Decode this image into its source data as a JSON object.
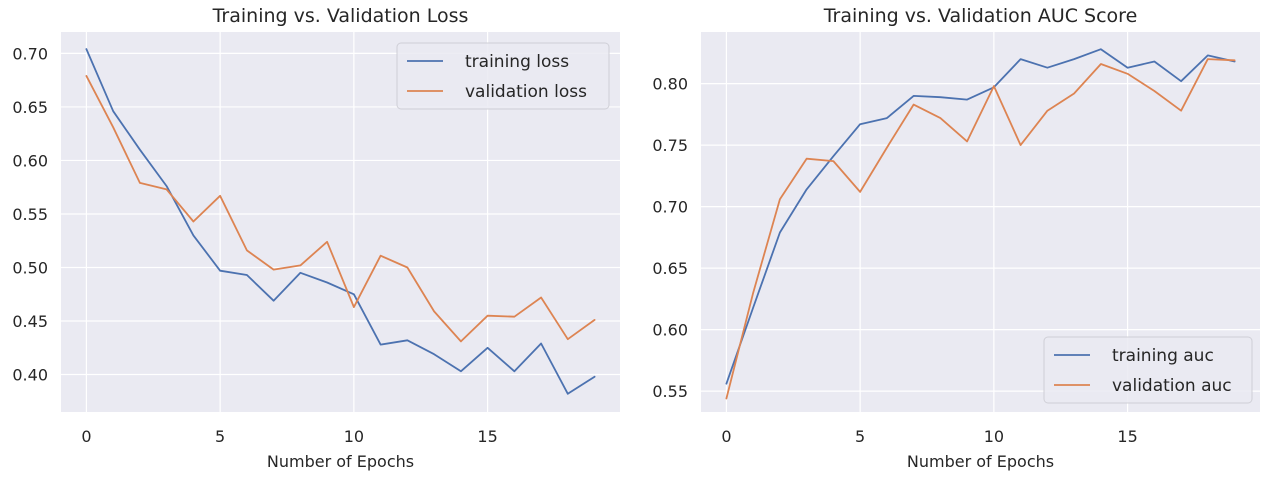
{
  "chart_data": [
    {
      "type": "line",
      "title": "Training vs. Validation Loss",
      "xlabel": "Number of Epochs",
      "ylabel": "",
      "xlim": [
        -0.95,
        19.95
      ],
      "ylim": [
        0.365,
        0.72
      ],
      "x_ticks": [
        0,
        5,
        10,
        15
      ],
      "y_ticks": [
        0.4,
        0.45,
        0.5,
        0.55,
        0.6,
        0.65,
        0.7
      ],
      "y_tick_labels": [
        "0.40",
        "0.45",
        "0.50",
        "0.55",
        "0.60",
        "0.65",
        "0.70"
      ],
      "grid": true,
      "legend_position": "top-right",
      "x": [
        0,
        1,
        2,
        3,
        4,
        5,
        6,
        7,
        8,
        9,
        10,
        11,
        12,
        13,
        14,
        15,
        16,
        17,
        18,
        19
      ],
      "series": [
        {
          "name": "training loss",
          "color": "#4c72b0",
          "values": [
            0.704,
            0.646,
            0.61,
            0.576,
            0.53,
            0.497,
            0.493,
            0.469,
            0.495,
            0.486,
            0.475,
            0.428,
            0.432,
            0.419,
            0.403,
            0.425,
            0.403,
            0.429,
            0.382,
            0.398
          ]
        },
        {
          "name": "validation loss",
          "color": "#dd8452",
          "values": [
            0.679,
            0.631,
            0.579,
            0.573,
            0.543,
            0.567,
            0.516,
            0.498,
            0.502,
            0.524,
            0.463,
            0.511,
            0.5,
            0.459,
            0.431,
            0.455,
            0.454,
            0.472,
            0.433,
            0.451
          ]
        }
      ]
    },
    {
      "type": "line",
      "title": "Training vs. Validation AUC Score",
      "xlabel": "Number of Epochs",
      "ylabel": "",
      "xlim": [
        -0.95,
        19.95
      ],
      "ylim": [
        0.533,
        0.842
      ],
      "x_ticks": [
        0,
        5,
        10,
        15
      ],
      "y_ticks": [
        0.55,
        0.6,
        0.65,
        0.7,
        0.75,
        0.8
      ],
      "y_tick_labels": [
        "0.55",
        "0.60",
        "0.65",
        "0.70",
        "0.75",
        "0.80"
      ],
      "grid": true,
      "legend_position": "bottom-right",
      "x": [
        0,
        1,
        2,
        3,
        4,
        5,
        6,
        7,
        8,
        9,
        10,
        11,
        12,
        13,
        14,
        15,
        16,
        17,
        18,
        19
      ],
      "series": [
        {
          "name": "training auc",
          "color": "#4c72b0",
          "values": [
            0.556,
            0.618,
            0.679,
            0.714,
            0.741,
            0.767,
            0.772,
            0.79,
            0.789,
            0.787,
            0.797,
            0.82,
            0.813,
            0.82,
            0.828,
            0.813,
            0.818,
            0.802,
            0.823,
            0.818
          ]
        },
        {
          "name": "validation auc",
          "color": "#dd8452",
          "values": [
            0.544,
            0.63,
            0.706,
            0.739,
            0.737,
            0.712,
            0.748,
            0.783,
            0.772,
            0.753,
            0.798,
            0.75,
            0.778,
            0.792,
            0.816,
            0.808,
            0.794,
            0.778,
            0.82,
            0.819
          ]
        }
      ]
    }
  ]
}
